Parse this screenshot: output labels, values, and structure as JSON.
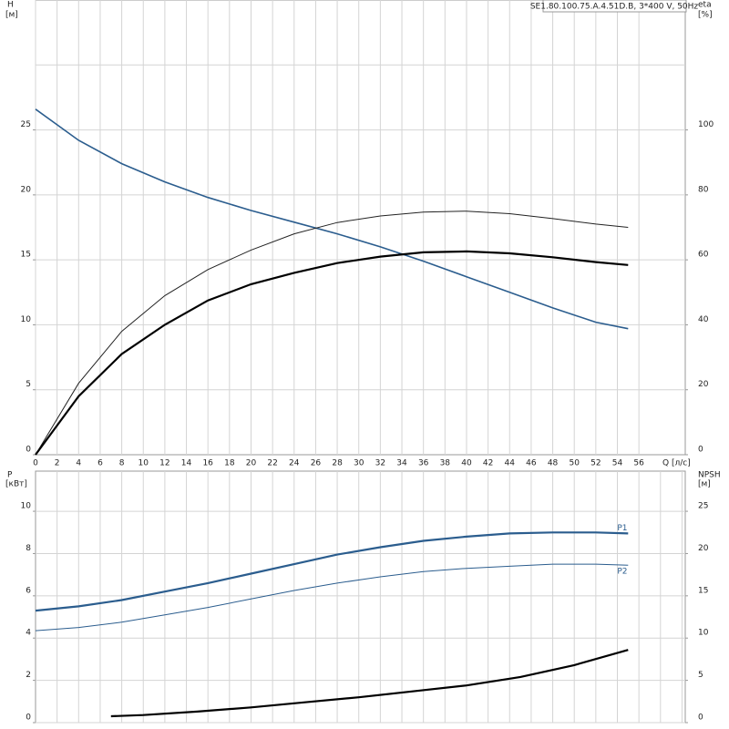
{
  "title": "SE1.80.100.75.A.4.51D.B, 3*400 V, 50Hz",
  "chart_data": [
    {
      "type": "line",
      "y_label": "H",
      "y_unit": "[м]",
      "y2_label": "eta",
      "y2_unit": "[%]",
      "x_label": "Q [л/с]",
      "xlim": [
        0,
        60.3
      ],
      "xticks": [
        0,
        2,
        4,
        6,
        8,
        10,
        12,
        14,
        16,
        18,
        20,
        22,
        24,
        26,
        28,
        30,
        32,
        34,
        36,
        38,
        40,
        42,
        44,
        46,
        48,
        50,
        52,
        54,
        56
      ],
      "ylim": [
        0,
        35
      ],
      "yticks": [
        0,
        5,
        10,
        15,
        20,
        25
      ],
      "ygrid": [
        5,
        10,
        15,
        20,
        25,
        30
      ],
      "y2lim": [
        0,
        140
      ],
      "y2ticks": [
        0,
        20,
        40,
        60,
        80,
        100
      ],
      "grid": true,
      "series": [
        {
          "color": "#2b5d8e",
          "width": 1.6,
          "x": [
            0,
            4,
            8,
            12,
            16,
            20,
            24,
            28,
            32,
            36,
            40,
            44,
            48,
            52,
            55
          ],
          "values": [
            26.6,
            24.2,
            22.4,
            21.0,
            19.8,
            18.8,
            17.9,
            17.0,
            16.0,
            14.9,
            13.7,
            12.5,
            11.3,
            10.2,
            9.7
          ]
        },
        {
          "color": "#222222",
          "width": 1,
          "axis": "y2",
          "x": [
            0,
            4,
            8,
            12,
            16,
            20,
            24,
            28,
            32,
            36,
            40,
            44,
            48,
            52,
            55
          ],
          "values": [
            0,
            22,
            38,
            49,
            57,
            63,
            68,
            71.5,
            73.5,
            74.7,
            75,
            74.2,
            72.7,
            71,
            70
          ]
        },
        {
          "color": "#000000",
          "width": 2.2,
          "axis": "y2",
          "x": [
            0,
            4,
            8,
            12,
            16,
            20,
            24,
            28,
            32,
            36,
            40,
            44,
            48,
            52,
            55
          ],
          "values": [
            0,
            18,
            31,
            40,
            47.5,
            52.5,
            56,
            59,
            61,
            62.3,
            62.6,
            62,
            60.8,
            59.3,
            58.4
          ]
        }
      ]
    },
    {
      "type": "line",
      "y_label": "P",
      "y_unit": "[кВт]",
      "y2_label": "NPSH",
      "y2_unit": "[м]",
      "xlim": [
        0,
        60.3
      ],
      "xgrid": [
        2,
        4,
        6,
        8,
        10,
        12,
        14,
        16,
        18,
        20,
        22,
        24,
        26,
        28,
        30,
        32,
        34,
        36,
        38,
        40,
        42,
        44,
        46,
        48,
        50,
        52,
        54,
        56,
        58,
        60
      ],
      "ylim": [
        0,
        11.9
      ],
      "yticks": [
        0,
        2,
        4,
        6,
        8,
        10
      ],
      "y2lim": [
        0,
        29.75
      ],
      "y2ticks": [
        0,
        5,
        10,
        15,
        20,
        25
      ],
      "grid": true,
      "series": [
        {
          "name": "P1",
          "color": "#2b5d8e",
          "width": 2.2,
          "x": [
            0,
            4,
            8,
            12,
            16,
            20,
            24,
            28,
            32,
            36,
            40,
            44,
            48,
            52,
            55
          ],
          "values": [
            5.3,
            5.5,
            5.8,
            6.2,
            6.6,
            7.05,
            7.5,
            7.95,
            8.3,
            8.6,
            8.8,
            8.95,
            9.0,
            9.0,
            8.95
          ]
        },
        {
          "name": "P2",
          "color": "#2b5d8e",
          "width": 1,
          "x": [
            0,
            4,
            8,
            12,
            16,
            20,
            24,
            28,
            32,
            36,
            40,
            44,
            48,
            52,
            55
          ],
          "values": [
            4.35,
            4.5,
            4.75,
            5.1,
            5.45,
            5.85,
            6.25,
            6.6,
            6.9,
            7.15,
            7.3,
            7.4,
            7.5,
            7.5,
            7.45
          ]
        },
        {
          "color": "#000000",
          "width": 2.2,
          "axis": "y2",
          "x": [
            7,
            10,
            15,
            20,
            25,
            30,
            35,
            40,
            45,
            50,
            55
          ],
          "values": [
            0.75,
            0.9,
            1.3,
            1.8,
            2.4,
            3.0,
            3.7,
            4.4,
            5.4,
            6.8,
            8.6
          ]
        }
      ]
    }
  ]
}
